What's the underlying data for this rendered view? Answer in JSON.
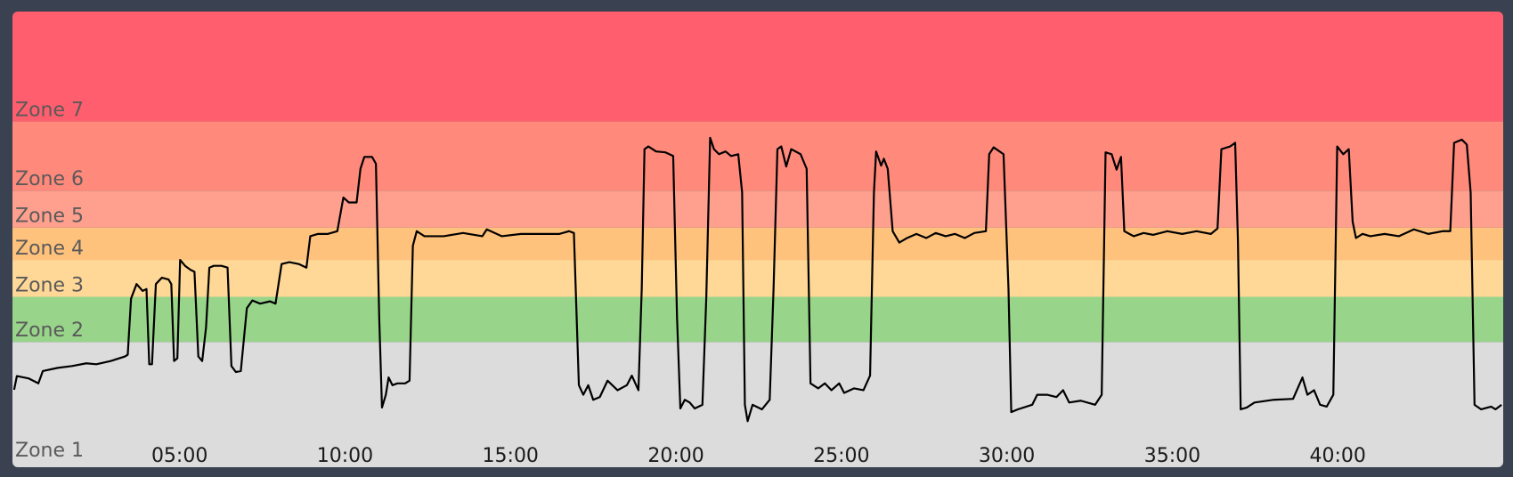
{
  "chart_data": {
    "type": "zone-line",
    "zones": [
      {
        "label": "Zone 1",
        "from": 0,
        "to": 27.5,
        "color": "#dcdcdc"
      },
      {
        "label": "Zone 2",
        "from": 27.5,
        "to": 37.4,
        "color": "#98d58a"
      },
      {
        "label": "Zone 3",
        "from": 37.4,
        "to": 45.5,
        "color": "#ffd796"
      },
      {
        "label": "Zone 4",
        "from": 45.5,
        "to": 52.6,
        "color": "#ffc27c"
      },
      {
        "label": "Zone 5",
        "from": 52.6,
        "to": 60.7,
        "color": "#ffa08f"
      },
      {
        "label": "Zone 6",
        "from": 60.7,
        "to": 75.9,
        "color": "#ff8a7c"
      },
      {
        "label": "Zone 7",
        "from": 75.9,
        "to": 100,
        "color": "#ff5e6e"
      }
    ],
    "xlim": [
      -3,
      2700
    ],
    "ylim": [
      0,
      100
    ],
    "xticks": [
      {
        "value": 300,
        "label": "05:00"
      },
      {
        "value": 600,
        "label": "10:00"
      },
      {
        "value": 900,
        "label": "15:00"
      },
      {
        "value": 1200,
        "label": "20:00"
      },
      {
        "value": 1500,
        "label": "25:00"
      },
      {
        "value": 1800,
        "label": "30:00"
      },
      {
        "value": 2100,
        "label": "35:00"
      },
      {
        "value": 2400,
        "label": "40:00"
      }
    ],
    "line_color": "#000000",
    "x": [
      0,
      5,
      26,
      44,
      52,
      79,
      105,
      131,
      149,
      175,
      201,
      206,
      212,
      222,
      233,
      240,
      245,
      250,
      257,
      268,
      280,
      285,
      290,
      296,
      301,
      310,
      320,
      327,
      334,
      341,
      348,
      354,
      362,
      376,
      387,
      394,
      402,
      411,
      422,
      432,
      446,
      464,
      474,
      485,
      499,
      516,
      530,
      537,
      551,
      569,
      586,
      597,
      607,
      621,
      628,
      635,
      649,
      656,
      662,
      667,
      674,
      679,
      686,
      695,
      709,
      717,
      723,
      730,
      744,
      779,
      814,
      849,
      857,
      884,
      919,
      954,
      989,
      1006,
      1015,
      1024,
      1032,
      1041,
      1050,
      1062,
      1076,
      1094,
      1111,
      1120,
      1132,
      1138,
      1143,
      1150,
      1164,
      1181,
      1195,
      1202,
      1208,
      1216,
      1225,
      1234,
      1248,
      1255,
      1262,
      1269,
      1278,
      1290,
      1300,
      1313,
      1320,
      1325,
      1330,
      1339,
      1356,
      1370,
      1377,
      1384,
      1391,
      1400,
      1409,
      1426,
      1437,
      1444,
      1458,
      1470,
      1482,
      1496,
      1505,
      1523,
      1540,
      1552,
      1559,
      1563,
      1572,
      1577,
      1584,
      1593,
      1605,
      1619,
      1636,
      1654,
      1671,
      1689,
      1706,
      1724,
      1741,
      1762,
      1768,
      1776,
      1794,
      1803,
      1808,
      1820,
      1846,
      1855,
      1873,
      1890,
      1902,
      1913,
      1934,
      1960,
      1972,
      1979,
      1990,
      1999,
      2007,
      2013,
      2030,
      2048,
      2065,
      2091,
      2118,
      2144,
      2170,
      2182,
      2189,
      2205,
      2214,
      2219,
      2224,
      2235,
      2249,
      2284,
      2319,
      2328,
      2336,
      2345,
      2357,
      2368,
      2380,
      2392,
      2399,
      2410,
      2420,
      2427,
      2433,
      2445,
      2459,
      2485,
      2511,
      2538,
      2564,
      2590,
      2604,
      2611,
      2625,
      2634,
      2641,
      2648,
      2660,
      2678,
      2686,
      2697
    ],
    "values": [
      17,
      20,
      19.5,
      18.4,
      21.1,
      21.8,
      22.2,
      22.8,
      22.6,
      23.3,
      24.3,
      24.7,
      37,
      40.2,
      38.7,
      39.1,
      22.6,
      22.6,
      40.2,
      41.6,
      41.2,
      40.2,
      23.3,
      23.9,
      45.5,
      44.2,
      43.3,
      42.9,
      24.3,
      23.3,
      30.7,
      43.8,
      44.2,
      44.2,
      43.8,
      22.2,
      20.9,
      21.1,
      34.9,
      36.6,
      35.9,
      36.4,
      35.9,
      44.6,
      45,
      44.6,
      43.8,
      50.7,
      51.2,
      51.2,
      51.8,
      59.2,
      58.1,
      58.1,
      65.5,
      68.1,
      68.1,
      66.6,
      32.8,
      13.1,
      15.9,
      19.7,
      18,
      18.4,
      18.4,
      19,
      48.6,
      51.8,
      50.7,
      50.7,
      51.4,
      50.7,
      52.2,
      50.7,
      51.2,
      51.2,
      51.2,
      51.8,
      51.4,
      18,
      15.9,
      18,
      14.8,
      15.4,
      19,
      16.9,
      18,
      20.1,
      16.9,
      39.1,
      69.8,
      70.4,
      69.3,
      69.1,
      68.3,
      32.8,
      12.9,
      14.8,
      14.2,
      12.9,
      13.7,
      37,
      72.3,
      69.8,
      68.7,
      69.3,
      68.3,
      68.7,
      60.3,
      13.7,
      10.1,
      13.7,
      12.7,
      14.8,
      39.1,
      69.8,
      70.4,
      66,
      69.8,
      68.7,
      65.5,
      18.4,
      17.3,
      18.4,
      16.9,
      18.4,
      16.3,
      17.3,
      16.9,
      20.1,
      60.3,
      69.3,
      66.2,
      67.7,
      65.5,
      51.8,
      49.3,
      50.3,
      51.2,
      50.3,
      51.4,
      50.7,
      51.2,
      50.3,
      51.4,
      51.8,
      68.7,
      70.2,
      68.7,
      39.1,
      12.1,
      12.7,
      13.7,
      15.9,
      15.9,
      15.4,
      16.9,
      14.2,
      14.6,
      13.7,
      15.9,
      69.1,
      68.7,
      65.3,
      68.1,
      51.8,
      50.7,
      51.4,
      51,
      51.8,
      51.2,
      51.8,
      51.2,
      52.4,
      69.8,
      70.4,
      71.2,
      49.7,
      12.7,
      13.1,
      14.2,
      14.8,
      15,
      17.5,
      19.7,
      15.9,
      16.9,
      13.7,
      13.3,
      15.9,
      70.4,
      68.7,
      69.8,
      53.9,
      50.3,
      51.2,
      50.7,
      51.2,
      50.7,
      52.2,
      51.2,
      51.8,
      51.8,
      71.2,
      71.9,
      70.8,
      60.3,
      13.7,
      12.7,
      13.3,
      12.7,
      13.7
    ]
  }
}
